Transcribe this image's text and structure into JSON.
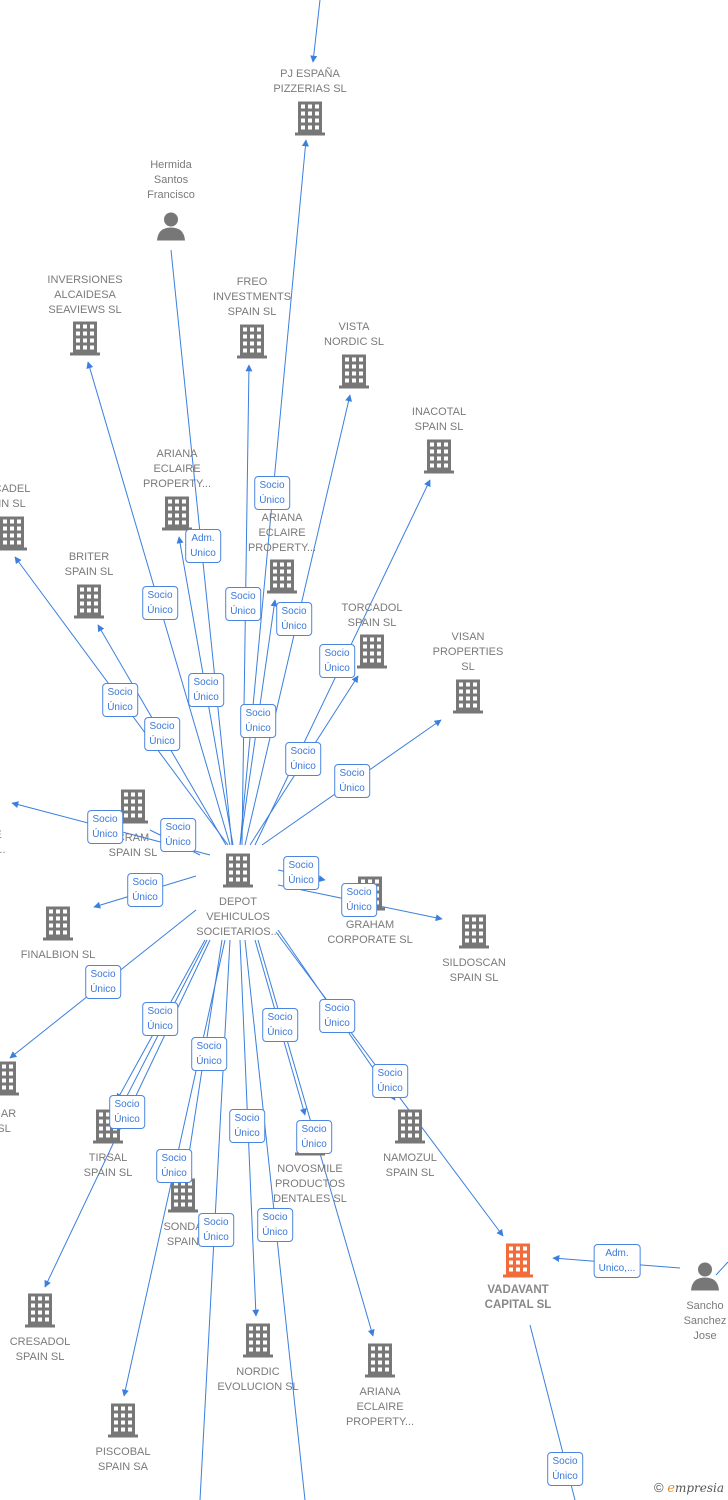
{
  "colors": {
    "link": "#3a7fde",
    "company": "#777777",
    "focus_company": "#f26b3a",
    "text": "#7a7a7a"
  },
  "nodes": [
    {
      "id": "pj",
      "type": "company",
      "label": [
        "PJ ESPAÑA",
        "PIZZERIAS  SL"
      ]
    },
    {
      "id": "hermida",
      "type": "person",
      "label": [
        "Hermida",
        "Santos",
        "Francisco"
      ]
    },
    {
      "id": "inversiones",
      "type": "company",
      "label": [
        "INVERSIONES",
        "ALCAIDESA",
        "SEAVIEWS  SL"
      ]
    },
    {
      "id": "freo",
      "type": "company",
      "label": [
        "FREO",
        "INVESTMENTS",
        "SPAIN  SL"
      ]
    },
    {
      "id": "vista",
      "type": "company",
      "label": [
        "VISTA",
        "NORDIC  SL"
      ]
    },
    {
      "id": "inacotal",
      "type": "company",
      "label": [
        "INACOTAL",
        "SPAIN  SL"
      ]
    },
    {
      "id": "cadel",
      "type": "company",
      "label": [
        "CADEL",
        "IN  SL"
      ]
    },
    {
      "id": "ariana1",
      "type": "company",
      "label": [
        "ARIANA",
        "ECLAIRE",
        "PROPERTY..."
      ]
    },
    {
      "id": "ariana2",
      "type": "company",
      "label": [
        "ARIANA",
        "ECLAIRE",
        "PROPERTY..."
      ]
    },
    {
      "id": "briter",
      "type": "company",
      "label": [
        "BRITER",
        "SPAIN  SL"
      ]
    },
    {
      "id": "torcadol",
      "type": "company",
      "label": [
        "TORCADOL",
        "SPAIN  SL"
      ]
    },
    {
      "id": "visan",
      "type": "company",
      "label": [
        "VISAN",
        "PROPERTIES",
        "SL"
      ]
    },
    {
      "id": "leftcut",
      "type": "none",
      "label": [
        "E",
        "Y..."
      ]
    },
    {
      "id": "cram",
      "type": "company",
      "label": [
        "CRAM",
        "SPAIN  SL"
      ]
    },
    {
      "id": "depot",
      "type": "company",
      "label": [
        "DEPOT",
        "VEHICULOS",
        "SOCIETARIOS..."
      ]
    },
    {
      "id": "graham",
      "type": "company",
      "label": [
        "GRAHAM",
        "CORPORATE  SL"
      ]
    },
    {
      "id": "sildoscan",
      "type": "company",
      "label": [
        "SILDOSCAN",
        "SPAIN  SL"
      ]
    },
    {
      "id": "finalbion",
      "type": "company",
      "label": [
        "FINALBION  SL"
      ]
    },
    {
      "id": "mar",
      "type": "company",
      "label": [
        "MAR",
        "SL"
      ]
    },
    {
      "id": "tirsal",
      "type": "company",
      "label": [
        "TIRSAL",
        "SPAIN  SL"
      ]
    },
    {
      "id": "sonda",
      "type": "company",
      "label": [
        "SONDA",
        "SPAIN"
      ]
    },
    {
      "id": "novosmile",
      "type": "company",
      "label": [
        "NOVOSMILE",
        "PRODUCTOS",
        "DENTALES  SL"
      ]
    },
    {
      "id": "namozul",
      "type": "company",
      "label": [
        "NAMOZUL",
        "SPAIN  SL"
      ]
    },
    {
      "id": "vadavant",
      "type": "focus",
      "label": [
        "VADAVANT",
        "CAPITAL  SL"
      ]
    },
    {
      "id": "sancho",
      "type": "person",
      "label": [
        "Sancho",
        "Sanchez",
        "Jose"
      ]
    },
    {
      "id": "cresadol",
      "type": "company",
      "label": [
        "CRESADOL",
        "SPAIN  SL"
      ]
    },
    {
      "id": "nordic",
      "type": "company",
      "label": [
        "NORDIC",
        "EVOLUCION  SL"
      ]
    },
    {
      "id": "ariana3",
      "type": "company",
      "label": [
        "ARIANA",
        "ECLAIRE",
        "PROPERTY..."
      ]
    },
    {
      "id": "piscobal",
      "type": "company",
      "label": [
        "PISCOBAL",
        "SPAIN SA"
      ]
    }
  ],
  "edge_labels": [
    "Socio\nÚnico",
    "Adm.\nUnico",
    "Socio\nÚnico",
    "Socio\nÚnico",
    "Socio\nÚnico",
    "Socio\nÚnico",
    "Socio\nÚnico",
    "Socio\nÚnico",
    "Socio\nÚnico",
    "Socio\nÚnico",
    "Socio\nÚnico",
    "Socio\nÚnico",
    "Socio\nÚnico",
    "Socio\nÚnico",
    "Socio\nÚnico",
    "Socio\nÚnico",
    "Socio\nÚnico",
    "Socio\nÚnico",
    "Socio\nÚnico",
    "Socio\nÚnico",
    "Socio\nÚnico",
    "Socio\nÚnico",
    "Socio\nÚnico",
    "Socio\nÚnico",
    "Socio\nÚnico",
    "Socio\nÚnico",
    "Socio\nÚnico",
    "Socio\nÚnico",
    "Socio\nÚnico",
    "Adm.\nUnico,...",
    "Socio\nÚnico"
  ],
  "logo": {
    "copyright": "©",
    "brand_initial": "e",
    "brand_rest": "mpresia"
  }
}
